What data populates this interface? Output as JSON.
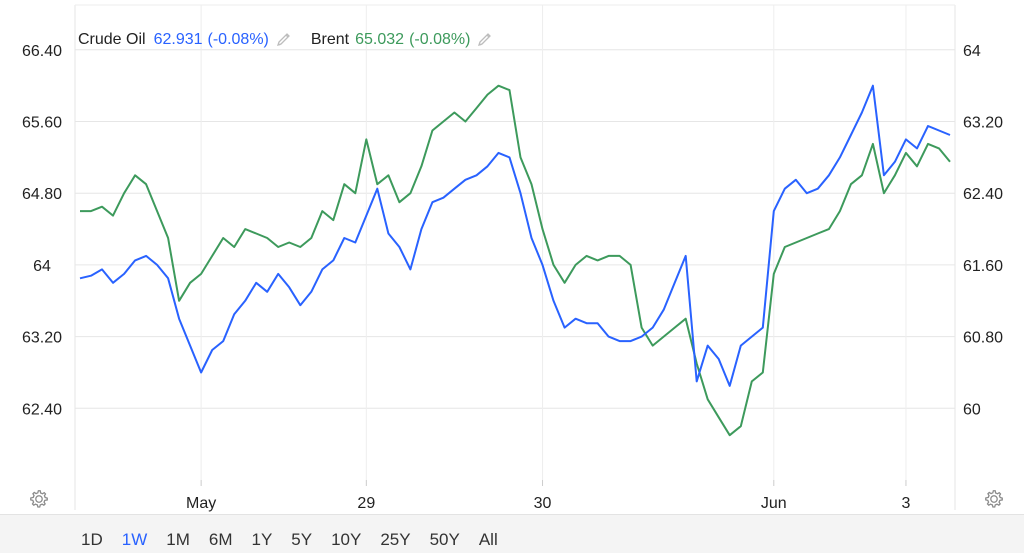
{
  "legend": {
    "series1_name": "Crude Oil",
    "series1_value": "62.931",
    "series1_change": "(-0.08%)",
    "series2_name": "Brent",
    "series2_value": "65.032",
    "series2_change": "(-0.08%)"
  },
  "colors": {
    "crude": "#2962ff",
    "brent": "#3d9a5c",
    "grid": "#e6e6e6",
    "text": "#222222"
  },
  "icons": {
    "edit": "pencil-icon",
    "settings": "gear-icon"
  },
  "range_buttons": [
    "1D",
    "1W",
    "1M",
    "6M",
    "1Y",
    "5Y",
    "10Y",
    "25Y",
    "50Y",
    "All"
  ],
  "active_range": "1W",
  "chart_data": {
    "type": "line",
    "grid": true,
    "legend_position": "top-left",
    "x_ticks": [
      "May",
      "29",
      "30",
      "Jun",
      "3"
    ],
    "left_axis": {
      "ticks": [
        "66.40",
        "65.60",
        "64.80",
        "64",
        "63.20",
        "62.40"
      ],
      "ylim": [
        61.6,
        66.9
      ]
    },
    "right_axis": {
      "ticks": [
        "64",
        "63.20",
        "62.40",
        "61.60",
        "60.80",
        "60"
      ],
      "ylim": [
        59.2,
        64.5
      ]
    },
    "series": [
      {
        "name": "Crude Oil",
        "axis": "left",
        "values": [
          63.85,
          63.88,
          63.95,
          63.8,
          63.9,
          64.05,
          64.1,
          64.0,
          63.85,
          63.4,
          63.1,
          62.8,
          63.05,
          63.15,
          63.45,
          63.6,
          63.8,
          63.7,
          63.9,
          63.75,
          63.55,
          63.7,
          63.95,
          64.05,
          64.3,
          64.25,
          64.55,
          64.85,
          64.35,
          64.2,
          63.95,
          64.4,
          64.7,
          64.75,
          64.85,
          64.95,
          65.0,
          65.1,
          65.25,
          65.2,
          64.8,
          64.3,
          64.0,
          63.6,
          63.3,
          63.4,
          63.35,
          63.35,
          63.2,
          63.15,
          63.15,
          63.2,
          63.3,
          63.5,
          63.8,
          64.1,
          62.7,
          63.1,
          62.95,
          62.65,
          63.1,
          63.2,
          63.3,
          64.6,
          64.85,
          64.95,
          64.8,
          64.85,
          65.0,
          65.2,
          65.45,
          65.7,
          66.0,
          65.0,
          65.15,
          65.4,
          65.3,
          65.55,
          65.5,
          65.45
        ]
      },
      {
        "name": "Brent",
        "axis": "right",
        "values": [
          62.2,
          62.2,
          62.25,
          62.15,
          62.4,
          62.6,
          62.5,
          62.2,
          61.9,
          61.2,
          61.4,
          61.5,
          61.7,
          61.9,
          61.8,
          62.0,
          61.95,
          61.9,
          61.8,
          61.85,
          61.8,
          61.9,
          62.2,
          62.1,
          62.5,
          62.4,
          63.0,
          62.5,
          62.6,
          62.3,
          62.4,
          62.7,
          63.1,
          63.2,
          63.3,
          63.2,
          63.35,
          63.5,
          63.6,
          63.55,
          62.8,
          62.5,
          62.0,
          61.6,
          61.4,
          61.6,
          61.7,
          61.65,
          61.7,
          61.7,
          61.6,
          60.9,
          60.7,
          60.8,
          60.9,
          61.0,
          60.5,
          60.1,
          59.9,
          59.7,
          59.8,
          60.3,
          60.4,
          61.5,
          61.8,
          61.85,
          61.9,
          61.95,
          62.0,
          62.2,
          62.5,
          62.6,
          62.95,
          62.4,
          62.6,
          62.85,
          62.7,
          62.95,
          62.9,
          62.75
        ]
      }
    ]
  }
}
